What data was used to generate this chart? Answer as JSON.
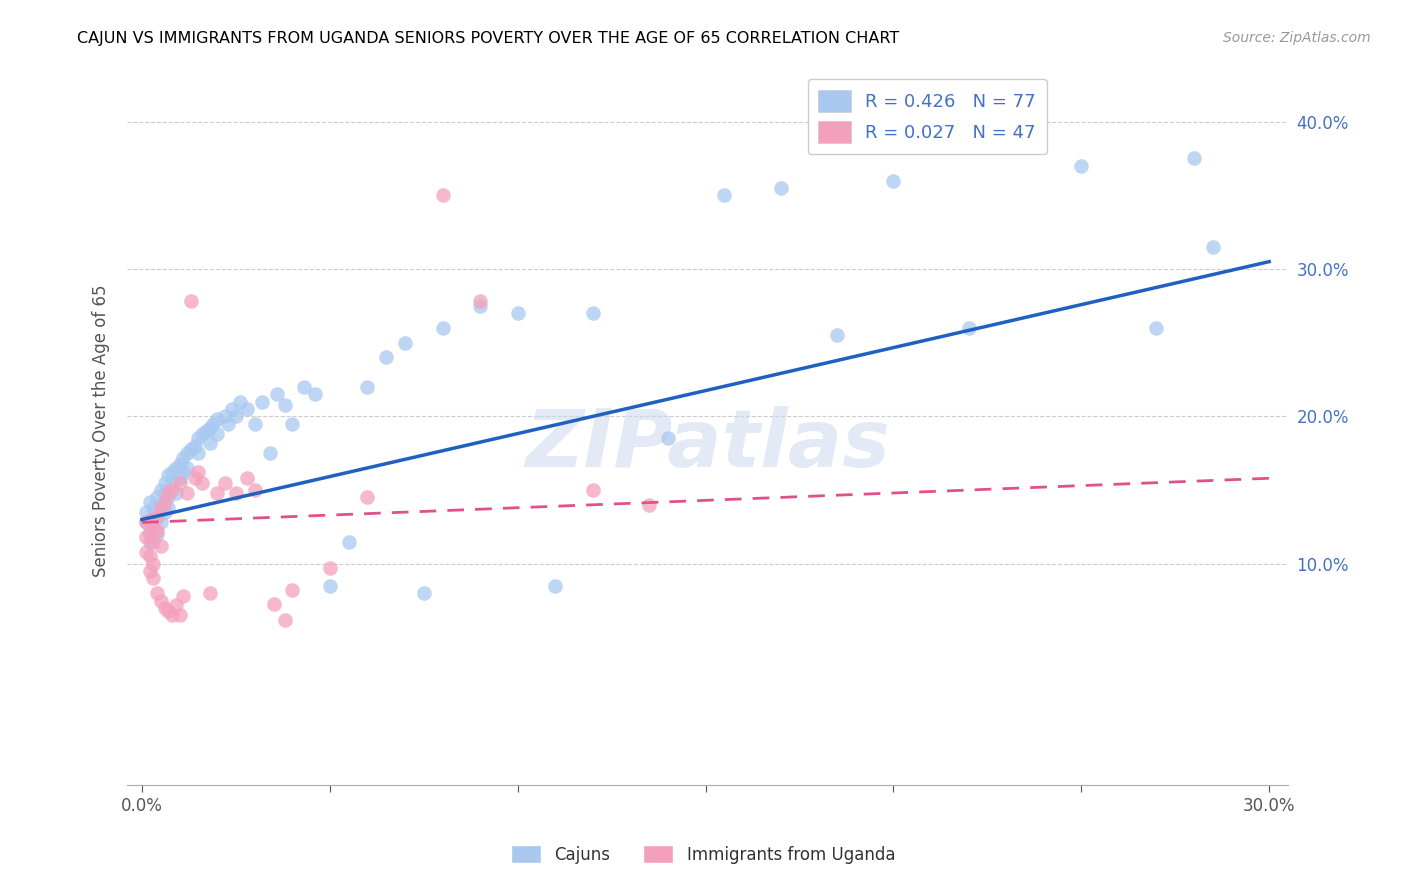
{
  "title": "CAJUN VS IMMIGRANTS FROM UGANDA SENIORS POVERTY OVER THE AGE OF 65 CORRELATION CHART",
  "source": "Source: ZipAtlas.com",
  "ylabel": "Seniors Poverty Over the Age of 65",
  "xlim": [
    -0.004,
    0.305
  ],
  "ylim": [
    -0.05,
    0.43
  ],
  "y_ticks_right": [
    0.1,
    0.2,
    0.3,
    0.4
  ],
  "y_tick_labels_right": [
    "10.0%",
    "20.0%",
    "30.0%",
    "40.0%"
  ],
  "legend1_label": "R = 0.426   N = 77",
  "legend2_label": "R = 0.027   N = 47",
  "legend_color1": "#A8C8F0",
  "legend_color2": "#F4A0BC",
  "scatter_color1": "#A8C8F0",
  "scatter_color2": "#F4A0BC",
  "line_color1": "#2060C0",
  "line_color2": "#E0508C",
  "watermark": "ZIPatlas",
  "bottom_legend1": "Cajuns",
  "bottom_legend2": "Immigrants from Uganda",
  "cajun_x": [
    0.001,
    0.001,
    0.002,
    0.002,
    0.002,
    0.003,
    0.003,
    0.003,
    0.003,
    0.004,
    0.004,
    0.004,
    0.005,
    0.005,
    0.005,
    0.006,
    0.006,
    0.006,
    0.007,
    0.007,
    0.007,
    0.008,
    0.008,
    0.009,
    0.009,
    0.01,
    0.01,
    0.011,
    0.011,
    0.012,
    0.012,
    0.013,
    0.014,
    0.015,
    0.015,
    0.016,
    0.017,
    0.018,
    0.018,
    0.019,
    0.02,
    0.02,
    0.022,
    0.023,
    0.024,
    0.025,
    0.026,
    0.028,
    0.03,
    0.032,
    0.034,
    0.036,
    0.038,
    0.04,
    0.043,
    0.046,
    0.05,
    0.055,
    0.06,
    0.065,
    0.07,
    0.075,
    0.08,
    0.09,
    0.1,
    0.11,
    0.12,
    0.14,
    0.155,
    0.17,
    0.185,
    0.2,
    0.22,
    0.25,
    0.27,
    0.28,
    0.285
  ],
  "cajun_y": [
    0.135,
    0.128,
    0.142,
    0.122,
    0.115,
    0.13,
    0.138,
    0.125,
    0.118,
    0.145,
    0.132,
    0.12,
    0.15,
    0.14,
    0.128,
    0.148,
    0.155,
    0.135,
    0.16,
    0.145,
    0.138,
    0.155,
    0.162,
    0.165,
    0.148,
    0.168,
    0.158,
    0.172,
    0.162,
    0.175,
    0.165,
    0.178,
    0.18,
    0.185,
    0.175,
    0.188,
    0.19,
    0.192,
    0.182,
    0.195,
    0.198,
    0.188,
    0.2,
    0.195,
    0.205,
    0.2,
    0.21,
    0.205,
    0.195,
    0.21,
    0.175,
    0.215,
    0.208,
    0.195,
    0.22,
    0.215,
    0.085,
    0.115,
    0.22,
    0.24,
    0.25,
    0.08,
    0.26,
    0.275,
    0.27,
    0.085,
    0.27,
    0.185,
    0.35,
    0.355,
    0.255,
    0.36,
    0.26,
    0.37,
    0.26,
    0.375,
    0.315
  ],
  "uganda_x": [
    0.001,
    0.001,
    0.001,
    0.002,
    0.002,
    0.002,
    0.002,
    0.003,
    0.003,
    0.003,
    0.003,
    0.004,
    0.004,
    0.004,
    0.005,
    0.005,
    0.005,
    0.006,
    0.006,
    0.007,
    0.007,
    0.008,
    0.008,
    0.009,
    0.01,
    0.01,
    0.011,
    0.012,
    0.013,
    0.014,
    0.015,
    0.016,
    0.018,
    0.02,
    0.022,
    0.025,
    0.028,
    0.03,
    0.035,
    0.038,
    0.04,
    0.05,
    0.06,
    0.08,
    0.09,
    0.12,
    0.135
  ],
  "uganda_y": [
    0.128,
    0.118,
    0.108,
    0.13,
    0.12,
    0.105,
    0.095,
    0.125,
    0.115,
    0.1,
    0.09,
    0.132,
    0.122,
    0.08,
    0.138,
    0.112,
    0.075,
    0.142,
    0.07,
    0.148,
    0.068,
    0.065,
    0.15,
    0.072,
    0.155,
    0.065,
    0.078,
    0.148,
    0.278,
    0.158,
    0.162,
    0.155,
    0.08,
    0.148,
    0.155,
    0.148,
    0.158,
    0.15,
    0.073,
    0.062,
    0.082,
    0.097,
    0.145,
    0.35,
    0.278,
    0.15,
    0.14
  ],
  "cajun_line_x": [
    0.0,
    0.3
  ],
  "cajun_line_y": [
    0.13,
    0.305
  ],
  "uganda_line_x": [
    0.0,
    0.3
  ],
  "uganda_line_y": [
    0.128,
    0.158
  ]
}
